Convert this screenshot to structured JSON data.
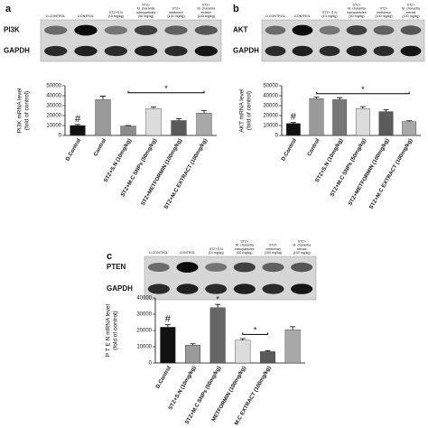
{
  "panels": [
    {
      "letter": "a",
      "rows": [
        "PI3K",
        "GAPDH"
      ],
      "lanes": [
        [
          "D.CONTROL"
        ],
        [
          "CONTROL"
        ],
        [
          "STZ+S.N",
          "(10 mg/kg)"
        ],
        [
          "STZ+",
          "M. charantia",
          "nanoparticles",
          "(50 mg/kg)"
        ],
        [
          "STZ+",
          "metformin",
          "(100 mg/kg)"
        ],
        [
          "STZ+",
          "M. charantia",
          "extract",
          "(100 mg/kg)"
        ]
      ]
    },
    {
      "letter": "b",
      "rows": [
        "AKT",
        "GAPDH"
      ],
      "lanes": [
        [
          "D.CONTROL"
        ],
        [
          "CONTROL"
        ],
        [
          "STZ+ S.N",
          "(10 mg/kg)"
        ],
        [
          "STZ+",
          "M. charantia",
          "nanoparticles",
          "(50 mg/kg)"
        ],
        [
          "STZ+",
          "metformin",
          "(100 mg/kg)"
        ],
        [
          "STZ+",
          "M. charantia",
          "extract",
          "(100 mg/kg)"
        ]
      ]
    },
    {
      "letter": "c",
      "rows": [
        "PTEN",
        "GAPDH"
      ],
      "lanes": [
        [
          "D.CONTROL"
        ],
        [
          "CONTROL"
        ],
        [
          "STZ+S.N",
          "(10 mg/kg)"
        ],
        [
          "STZ+",
          "M. charantia",
          "nanoparticles",
          "(50 mg/kg)"
        ],
        [
          "STZ+",
          "metformin",
          "(100 mg/kg)"
        ],
        [
          "STZ+",
          "M. charantia",
          "extract",
          "(100 mg/kg)"
        ]
      ]
    }
  ],
  "chart_data": [
    {
      "type": "bar",
      "ylabel": [
        "PI3K mRNA level",
        "(fold of control)"
      ],
      "categories": [
        "D.Control",
        "Control",
        "STZ+S.N (10mg/kg)",
        "STZ+M.C SNPs (50mg/kg)",
        "STZ+METFORMIN (100mg/kg)",
        "STZ+M.C EXTRACT (100mg/kg)"
      ],
      "values": [
        10000,
        36000,
        9500,
        27000,
        15000,
        22500
      ],
      "errors": [
        1000,
        3500,
        500,
        1500,
        2000,
        2500
      ],
      "colors": [
        "#111111",
        "#9a9a9a",
        "#8c8c8c",
        "#dcdcdc",
        "#5a5a5a",
        "#a8a8a8"
      ],
      "ylim": [
        0,
        50000
      ],
      "yticks": [
        0,
        10000,
        20000,
        30000,
        40000,
        50000
      ],
      "annotations": [
        "#",
        "*"
      ]
    },
    {
      "type": "bar",
      "ylabel": [
        "AKT mRNA level",
        "(fold of control)"
      ],
      "categories": [
        "D.Control",
        "Control",
        "STZ+S.N (10mg/kg)",
        "STZ+M.C SNPs (50mg/kg)",
        "STZ+METFORMIN (100mg/kg)",
        "STZ+M.C EXTRACT (100mg/kg)"
      ],
      "values": [
        12000,
        37000,
        36000,
        27000,
        24000,
        14000
      ],
      "errors": [
        1000,
        1500,
        2000,
        2000,
        2000,
        800
      ],
      "colors": [
        "#111111",
        "#9a9a9a",
        "#777777",
        "#dcdcdc",
        "#5a5a5a",
        "#a8a8a8"
      ],
      "ylim": [
        0,
        50000
      ],
      "yticks": [
        0,
        10000,
        20000,
        30000,
        40000,
        50000
      ],
      "annotations": [
        "#",
        "*"
      ]
    },
    {
      "type": "bar",
      "ylabel": [
        "P T E N   mRNA level",
        "(fold of control)"
      ],
      "categories": [
        "D.Control",
        "STZ+S.N (10mg/kg)",
        "STZ+M.C SNPs (50mg/kg)",
        "METFORMIN (100mg/kg)",
        "M.C EXTRACT (100mg/kg)",
        null
      ],
      "values": [
        22000,
        11000,
        34000,
        14000,
        7000,
        20500
      ],
      "errors": [
        1500,
        800,
        2000,
        1000,
        600,
        1800
      ],
      "colors": [
        "#111111",
        "#9a9a9a",
        "#666666",
        "#dcdcdc",
        "#5a5a5a",
        "#a8a8a8"
      ],
      "ylim": [
        0,
        40000
      ],
      "yticks": [
        0,
        10000,
        20000,
        30000,
        40000
      ],
      "annotations": [
        "#",
        "*",
        "*"
      ]
    }
  ]
}
